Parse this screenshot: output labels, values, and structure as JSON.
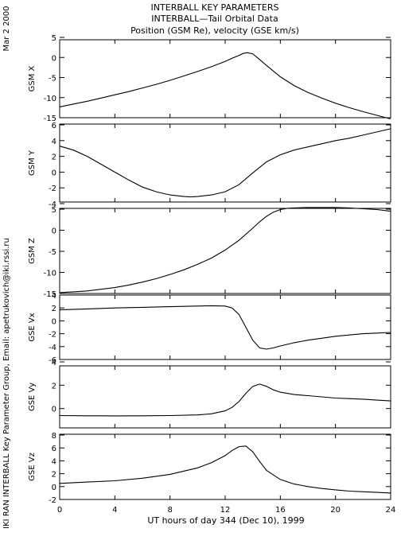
{
  "header": {
    "line1": "INTERBALL KEY PARAMETERS",
    "line2": "INTERBALL—Tail Orbital Data",
    "line3": "Position (GSM Re), velocity (GSE km/s)"
  },
  "side": {
    "date": "Mar  2 2000",
    "credit": "IKI RAN INTERBALL Key Parameter Group, Email: apetrukovich@iki.rssi.ru"
  },
  "chart_data": {
    "type": "line",
    "xlabel": "UT hours of day 344 (Dec 10), 1999",
    "xlim": [
      0,
      24
    ],
    "xticks": [
      0,
      4,
      8,
      12,
      16,
      20,
      24
    ],
    "xticklabels": [
      "0",
      "4",
      "8",
      "12",
      "16",
      "20",
      "24"
    ],
    "panels": [
      {
        "ylabel": "GSM X",
        "ylim": [
          -15,
          5
        ],
        "yticks": [
          5,
          0,
          -5,
          -10,
          -15
        ],
        "yticklabels": [
          "5",
          "0",
          "-5",
          "-10",
          "-15"
        ],
        "x": [
          0,
          1,
          2,
          3,
          4,
          5,
          6,
          7,
          8,
          9,
          10,
          11,
          12,
          12.5,
          13,
          13.3,
          13.6,
          14,
          14.5,
          15,
          16,
          17,
          18,
          19,
          20,
          21,
          22,
          23,
          24
        ],
        "y": [
          -12.3,
          -11.6,
          -10.9,
          -10.1,
          -9.3,
          -8.5,
          -7.6,
          -6.7,
          -5.7,
          -4.6,
          -3.5,
          -2.3,
          -1.0,
          -0.2,
          0.5,
          1.0,
          1.2,
          0.9,
          -0.5,
          -2.0,
          -4.8,
          -7.0,
          -8.7,
          -10.1,
          -11.4,
          -12.5,
          -13.5,
          -14.4,
          -15.3
        ]
      },
      {
        "ylabel": "GSM Y",
        "ylim": [
          -4,
          6
        ],
        "yticks": [
          6,
          4,
          2,
          0,
          -2,
          -4
        ],
        "yticklabels": [
          "6",
          "4",
          "2",
          "0",
          "-2",
          "-4"
        ],
        "x": [
          0,
          1,
          2,
          3,
          4,
          5,
          6,
          7,
          8,
          9,
          9.5,
          10,
          11,
          12,
          13,
          14,
          15,
          16,
          17,
          18,
          19,
          20,
          21,
          22,
          23,
          24
        ],
        "y": [
          3.3,
          2.8,
          2.0,
          1.0,
          0.0,
          -1.0,
          -1.9,
          -2.5,
          -2.9,
          -3.1,
          -3.15,
          -3.1,
          -2.9,
          -2.5,
          -1.6,
          -0.1,
          1.3,
          2.2,
          2.8,
          3.2,
          3.6,
          4.0,
          4.3,
          4.7,
          5.1,
          5.5
        ]
      },
      {
        "ylabel": "GSM Z",
        "ylim": [
          -15,
          5
        ],
        "yticks": [
          5,
          0,
          -5,
          -10,
          -15
        ],
        "yticklabels": [
          "5",
          "0",
          "-5",
          "-10",
          "-15"
        ],
        "x": [
          0,
          1,
          2,
          3,
          4,
          5,
          6,
          7,
          8,
          9,
          10,
          11,
          12,
          13,
          14,
          14.5,
          15,
          15.5,
          16,
          16.5,
          17,
          18,
          19,
          20,
          21,
          22,
          23,
          24
        ],
        "y": [
          -14.8,
          -14.6,
          -14.4,
          -14.0,
          -13.6,
          -13.0,
          -12.3,
          -11.5,
          -10.5,
          -9.4,
          -8.1,
          -6.6,
          -4.7,
          -2.4,
          0.5,
          2.0,
          3.3,
          4.3,
          4.9,
          5.2,
          5.3,
          5.4,
          5.4,
          5.4,
          5.3,
          5.1,
          4.9,
          4.5
        ]
      },
      {
        "ylabel": "GSE Vx",
        "ylim": [
          -6,
          4
        ],
        "yticks": [
          4,
          2,
          0,
          -2,
          -4,
          -6
        ],
        "yticklabels": [
          "4",
          "2",
          "0",
          "-2",
          "-4",
          "-6"
        ],
        "x": [
          0,
          2,
          4,
          6,
          8,
          10,
          11,
          12,
          12.5,
          13,
          13.5,
          14,
          14.5,
          15,
          15.5,
          16,
          17,
          18,
          19,
          20,
          21,
          22,
          23,
          24
        ],
        "y": [
          1.7,
          1.85,
          2.0,
          2.1,
          2.2,
          2.3,
          2.35,
          2.3,
          2.0,
          1.0,
          -1.0,
          -3.0,
          -4.2,
          -4.4,
          -4.2,
          -3.9,
          -3.4,
          -3.0,
          -2.7,
          -2.4,
          -2.2,
          -2.0,
          -1.9,
          -1.8
        ]
      },
      {
        "ylabel": "GSE Vy",
        "ylim": [
          -2,
          4
        ],
        "yticks": [
          4,
          2,
          0
        ],
        "yticklabels": [
          "4",
          "2",
          "0"
        ],
        "x": [
          0,
          2,
          4,
          6,
          8,
          10,
          11,
          12,
          12.5,
          13,
          13.5,
          14,
          14.5,
          15,
          15.5,
          16,
          17,
          18,
          19,
          20,
          21,
          22,
          23,
          24
        ],
        "y": [
          -0.6,
          -0.62,
          -0.63,
          -0.62,
          -0.6,
          -0.55,
          -0.45,
          -0.2,
          0.1,
          0.6,
          1.3,
          1.9,
          2.1,
          1.9,
          1.6,
          1.4,
          1.2,
          1.1,
          1.0,
          0.9,
          0.85,
          0.8,
          0.72,
          0.65
        ]
      },
      {
        "ylabel": "GSE Vz",
        "ylim": [
          -2,
          8
        ],
        "yticks": [
          8,
          6,
          4,
          2,
          0,
          -2
        ],
        "yticklabels": [
          "8",
          "6",
          "4",
          "2",
          "0",
          "-2"
        ],
        "x": [
          0,
          2,
          4,
          6,
          8,
          10,
          11,
          12,
          12.5,
          13,
          13.5,
          14,
          14.5,
          15,
          16,
          17,
          18,
          19,
          20,
          21,
          22,
          23,
          24
        ],
        "y": [
          0.5,
          0.7,
          0.9,
          1.3,
          1.9,
          2.9,
          3.7,
          4.8,
          5.6,
          6.2,
          6.3,
          5.4,
          3.9,
          2.5,
          1.1,
          0.4,
          0.0,
          -0.3,
          -0.5,
          -0.7,
          -0.8,
          -0.9,
          -1.0
        ]
      }
    ]
  }
}
